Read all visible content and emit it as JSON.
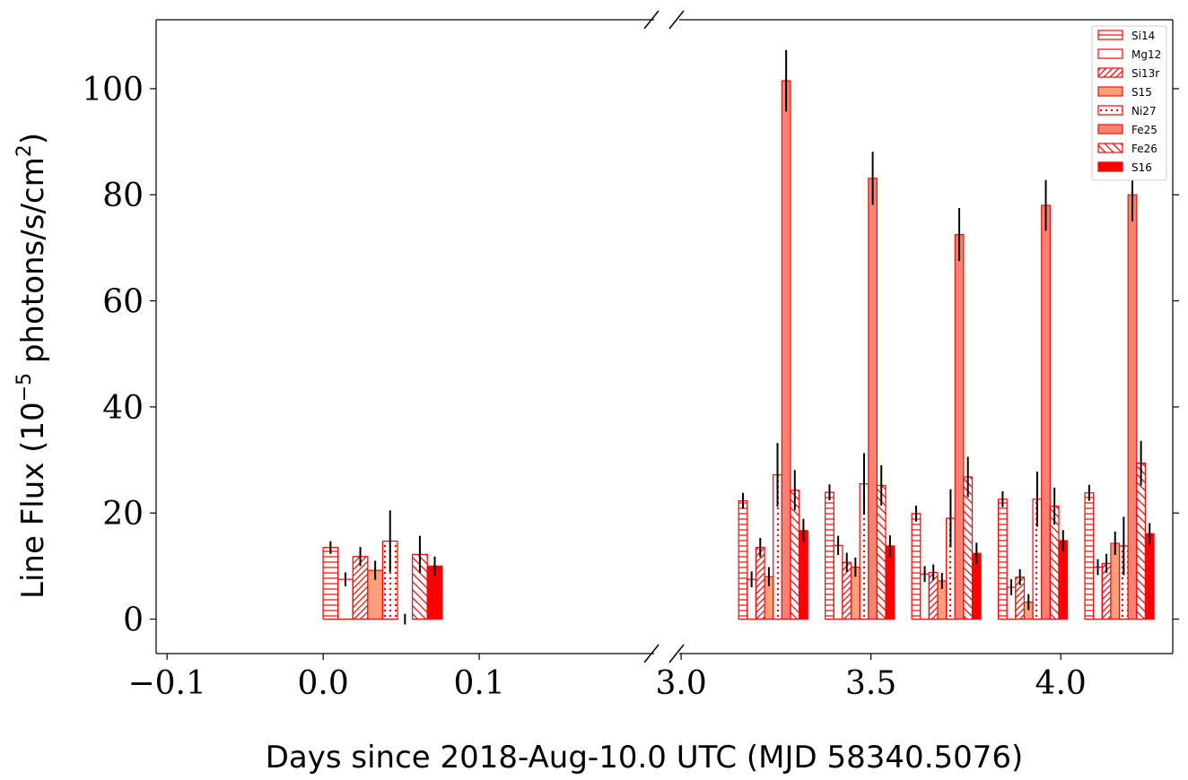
{
  "chart_data": {
    "type": "bar",
    "title": "",
    "xlabel": "Days since 2018-Aug-10.0 UTC (MJD 58340.5076)",
    "ylabel": "Line Flux (10^-5 photons/s/cm^2)",
    "ylabel_parts": {
      "main": "Line Flux (10",
      "sup1": "−5",
      "mid": " photons/s/cm",
      "sup2": "2",
      "end": ")"
    },
    "ylim": [
      -6.5,
      113
    ],
    "yticks": [
      0,
      20,
      40,
      60,
      80,
      100
    ],
    "left_panel": {
      "xlim": [
        -0.107,
        0.212
      ],
      "xticks": [
        -0.1,
        0.0,
        0.1
      ],
      "xtick_labels": [
        "−0.1",
        "0.0",
        "0.1"
      ]
    },
    "right_panel": {
      "xlim": [
        2.995,
        4.295
      ],
      "xticks": [
        3.0,
        3.5,
        4.0
      ],
      "xtick_labels": [
        "3.0",
        "3.5",
        "4.0"
      ]
    },
    "legend_position": "top-right",
    "series": [
      {
        "name": "Si14",
        "color": "#ff0000",
        "pattern": "hlines"
      },
      {
        "name": "Mg12",
        "color": "#ff0000",
        "pattern": "none"
      },
      {
        "name": "Si13r",
        "color": "#ff0000",
        "pattern": "diag"
      },
      {
        "name": "S15",
        "color": "#ffa07a",
        "pattern": "solid"
      },
      {
        "name": "Ni27",
        "color": "#ff0000",
        "pattern": "dots"
      },
      {
        "name": "Fe25",
        "color": "#fa8072",
        "pattern": "solid"
      },
      {
        "name": "Fe26",
        "color": "#ff0000",
        "pattern": "backdiag"
      },
      {
        "name": "S16",
        "color": "#ff0000",
        "pattern": "solid"
      }
    ],
    "groups": [
      {
        "panel": "left",
        "center": 0.0381,
        "width": 0.0763,
        "values": [
          13.5,
          7.5,
          11.8,
          9.2,
          14.7,
          0.0,
          12.2,
          10.0
        ],
        "errors": [
          1.2,
          1.3,
          1.8,
          1.8,
          5.8,
          1.0,
          3.5,
          1.8
        ]
      },
      {
        "panel": "right",
        "center": 3.2425,
        "width": 0.182,
        "values": [
          22.3,
          7.5,
          13.5,
          8.0,
          27.2,
          101.5,
          24.3,
          16.7
        ],
        "errors": [
          1.5,
          1.5,
          1.8,
          1.8,
          6.0,
          5.8,
          3.8,
          2.2
        ]
      },
      {
        "panel": "right",
        "center": 3.4705,
        "width": 0.182,
        "values": [
          23.9,
          13.9,
          10.7,
          9.8,
          25.5,
          83.1,
          25.2,
          13.8
        ],
        "errors": [
          1.5,
          1.8,
          1.8,
          1.8,
          5.8,
          5.0,
          3.8,
          2.0
        ]
      },
      {
        "panel": "right",
        "center": 3.6985,
        "width": 0.182,
        "values": [
          19.9,
          8.5,
          8.8,
          7.2,
          19.0,
          72.5,
          26.8,
          12.4
        ],
        "errors": [
          1.5,
          1.5,
          1.5,
          1.5,
          5.5,
          5.0,
          3.8,
          2.0
        ]
      },
      {
        "panel": "right",
        "center": 3.9265,
        "width": 0.182,
        "values": [
          22.6,
          6.0,
          7.9,
          3.2,
          22.6,
          78.0,
          21.3,
          14.8
        ],
        "errors": [
          1.5,
          1.5,
          1.5,
          1.5,
          5.2,
          4.8,
          3.5,
          2.0
        ]
      },
      {
        "panel": "right",
        "center": 4.1545,
        "width": 0.182,
        "values": [
          23.8,
          9.8,
          10.5,
          14.3,
          13.8,
          80.0,
          29.4,
          16.1
        ],
        "errors": [
          1.5,
          1.5,
          1.8,
          2.2,
          5.5,
          5.0,
          4.2,
          2.0
        ]
      }
    ]
  }
}
